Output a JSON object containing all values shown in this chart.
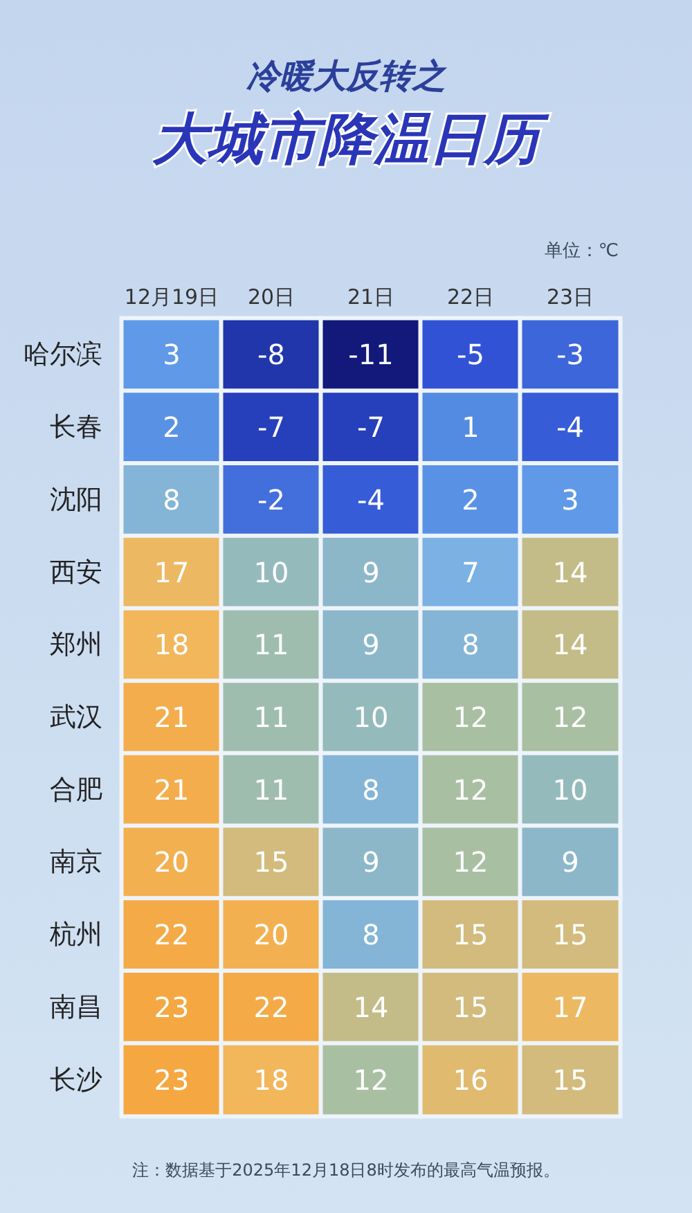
{
  "chart_data": {
    "type": "heatmap",
    "subtitle": "冷暖大反转之",
    "title": "大城市降温日历",
    "annotations": [
      "单位：℃",
      "注：数据基于2025年12月18日8时发布的最高气温预报。"
    ],
    "categories": [
      "12月19日",
      "20日",
      "21日",
      "22日",
      "23日"
    ],
    "y_categories": [
      "哈尔滨",
      "长春",
      "沈阳",
      "西安",
      "郑州",
      "武汉",
      "合肥",
      "南京",
      "杭州",
      "南昌",
      "长沙"
    ],
    "cells": [
      [
        3,
        -8,
        -11,
        -5,
        -3
      ],
      [
        2,
        -7,
        -7,
        1,
        -4
      ],
      [
        8,
        -2,
        -4,
        2,
        3
      ],
      [
        17,
        10,
        9,
        7,
        14
      ],
      [
        18,
        11,
        9,
        8,
        14
      ],
      [
        21,
        11,
        10,
        12,
        12
      ],
      [
        21,
        11,
        8,
        12,
        10
      ],
      [
        20,
        15,
        9,
        12,
        9
      ],
      [
        22,
        20,
        8,
        15,
        15
      ],
      [
        23,
        22,
        14,
        15,
        17
      ],
      [
        23,
        18,
        12,
        16,
        15
      ]
    ],
    "data_labels": true
  }
}
